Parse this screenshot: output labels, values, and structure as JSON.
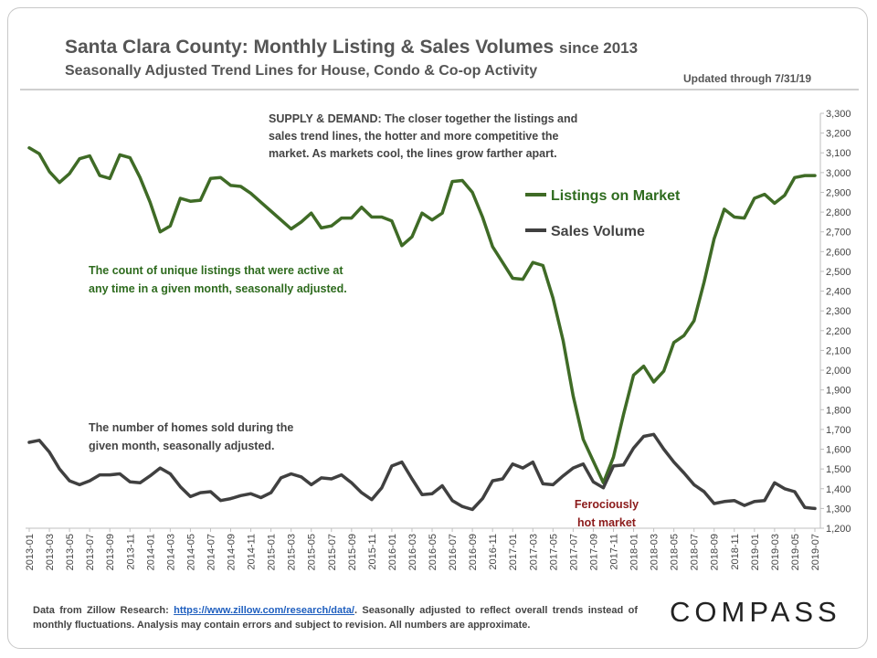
{
  "header": {
    "title": "Santa Clara County: Monthly Listing & Sales Volumes",
    "title_suffix": "since 2013",
    "subtitle": "Seasonally Adjusted Trend Lines for House, Condo & Co-op Activity",
    "updated": "Updated through 7/31/19"
  },
  "annotations": {
    "supply_demand": [
      "SUPPLY & DEMAND: The closer together the listings and",
      "sales trend lines, the hotter and more competitive the",
      "market. As markets cool, the lines grow farther apart."
    ],
    "listings_note": [
      "The count of unique listings that were active at",
      "any time in a given month, seasonally adjusted."
    ],
    "sales_note": [
      "The number of homes sold during the",
      "given month, seasonally adjusted."
    ],
    "hot_market": [
      "Ferociously",
      "hot market"
    ]
  },
  "footer": {
    "prefix": "Data from Zillow Research: ",
    "link": "https://www.zillow.com/research/data/",
    "suffix": ". Seasonally adjusted to reflect overall trends instead of monthly fluctuations. Analysis may contain errors and subject to revision. All numbers are approximate."
  },
  "logo": "COMPASS",
  "colors": {
    "listings": "#3f6b26",
    "sales": "#404040",
    "listings_text": "#2e6b1e",
    "hot_text": "#8b1a1a"
  },
  "chart_data": {
    "type": "line",
    "x": [
      "2013-01",
      "2013-02",
      "2013-03",
      "2013-04",
      "2013-05",
      "2013-06",
      "2013-07",
      "2013-08",
      "2013-09",
      "2013-10",
      "2013-11",
      "2013-12",
      "2014-01",
      "2014-02",
      "2014-03",
      "2014-04",
      "2014-05",
      "2014-06",
      "2014-07",
      "2014-08",
      "2014-09",
      "2014-10",
      "2014-11",
      "2014-12",
      "2015-01",
      "2015-02",
      "2015-03",
      "2015-04",
      "2015-05",
      "2015-06",
      "2015-07",
      "2015-08",
      "2015-09",
      "2015-10",
      "2015-11",
      "2015-12",
      "2016-01",
      "2016-02",
      "2016-03",
      "2016-04",
      "2016-05",
      "2016-06",
      "2016-07",
      "2016-08",
      "2016-09",
      "2016-10",
      "2016-11",
      "2016-12",
      "2017-01",
      "2017-02",
      "2017-03",
      "2017-04",
      "2017-05",
      "2017-06",
      "2017-07",
      "2017-08",
      "2017-09",
      "2017-10",
      "2017-11",
      "2017-12",
      "2018-01",
      "2018-02",
      "2018-03",
      "2018-04",
      "2018-05",
      "2018-06",
      "2018-07",
      "2018-08",
      "2018-09",
      "2018-10",
      "2018-11",
      "2018-12",
      "2019-01",
      "2019-02",
      "2019-03",
      "2019-04",
      "2019-05",
      "2019-06",
      "2019-07"
    ],
    "x_tick_labels": [
      "2013-01",
      "2013-03",
      "2013-05",
      "2013-07",
      "2013-09",
      "2013-11",
      "2014-01",
      "2014-03",
      "2014-05",
      "2014-07",
      "2014-09",
      "2014-11",
      "2015-01",
      "2015-03",
      "2015-05",
      "2015-07",
      "2015-09",
      "2015-11",
      "2016-01",
      "2016-03",
      "2016-05",
      "2016-07",
      "2016-09",
      "2016-11",
      "2017-01",
      "2017-03",
      "2017-05",
      "2017-07",
      "2017-09",
      "2017-11",
      "2018-01",
      "2018-03",
      "2018-05",
      "2018-07",
      "2018-09",
      "2018-11",
      "2019-01",
      "2019-03",
      "2019-05",
      "2019-07"
    ],
    "series": [
      {
        "name": "Listings on Market",
        "values": [
          3125,
          3095,
          3005,
          2950,
          2995,
          3070,
          3085,
          2985,
          2970,
          3090,
          3075,
          2975,
          2850,
          2700,
          2730,
          2870,
          2855,
          2860,
          2970,
          2975,
          2935,
          2930,
          2895,
          2850,
          2805,
          2760,
          2715,
          2750,
          2795,
          2720,
          2730,
          2770,
          2770,
          2825,
          2775,
          2775,
          2755,
          2630,
          2675,
          2795,
          2760,
          2795,
          2955,
          2960,
          2900,
          2775,
          2625,
          2545,
          2465,
          2460,
          2545,
          2530,
          2365,
          2150,
          1870,
          1650,
          1540,
          1430,
          1560,
          1775,
          1975,
          2020,
          1940,
          1995,
          2140,
          2175,
          2250,
          2445,
          2665,
          2815,
          2775,
          2770,
          2870,
          2890,
          2845,
          2885,
          2975,
          2985,
          2985
        ]
      },
      {
        "name": "Sales Volume",
        "values": [
          1635,
          1645,
          1585,
          1500,
          1440,
          1420,
          1440,
          1470,
          1470,
          1475,
          1435,
          1430,
          1465,
          1505,
          1475,
          1410,
          1360,
          1380,
          1385,
          1340,
          1350,
          1365,
          1375,
          1355,
          1380,
          1455,
          1475,
          1460,
          1420,
          1455,
          1450,
          1470,
          1430,
          1380,
          1345,
          1405,
          1515,
          1535,
          1450,
          1370,
          1375,
          1415,
          1340,
          1310,
          1295,
          1350,
          1440,
          1450,
          1525,
          1505,
          1535,
          1425,
          1420,
          1465,
          1505,
          1525,
          1435,
          1405,
          1515,
          1520,
          1605,
          1665,
          1675,
          1600,
          1535,
          1480,
          1420,
          1385,
          1325,
          1335,
          1340,
          1315,
          1335,
          1340,
          1430,
          1400,
          1385,
          1305,
          1300
        ]
      }
    ],
    "yticks": [
      1200,
      1300,
      1400,
      1500,
      1600,
      1700,
      1800,
      1900,
      2000,
      2100,
      2200,
      2300,
      2400,
      2500,
      2600,
      2700,
      2800,
      2900,
      3000,
      3100,
      3200,
      3300
    ],
    "ytick_labels": [
      "1,200",
      "1,300",
      "1,400",
      "1,500",
      "1,600",
      "1,700",
      "1,800",
      "1,900",
      "2,000",
      "2,100",
      "2,200",
      "2,300",
      "2,400",
      "2,500",
      "2,600",
      "2,700",
      "2,800",
      "2,900",
      "3,000",
      "3,100",
      "3,200",
      "3,300"
    ],
    "ylim": [
      1200,
      3300
    ],
    "legend": "upper-right-inside",
    "grid": false
  }
}
